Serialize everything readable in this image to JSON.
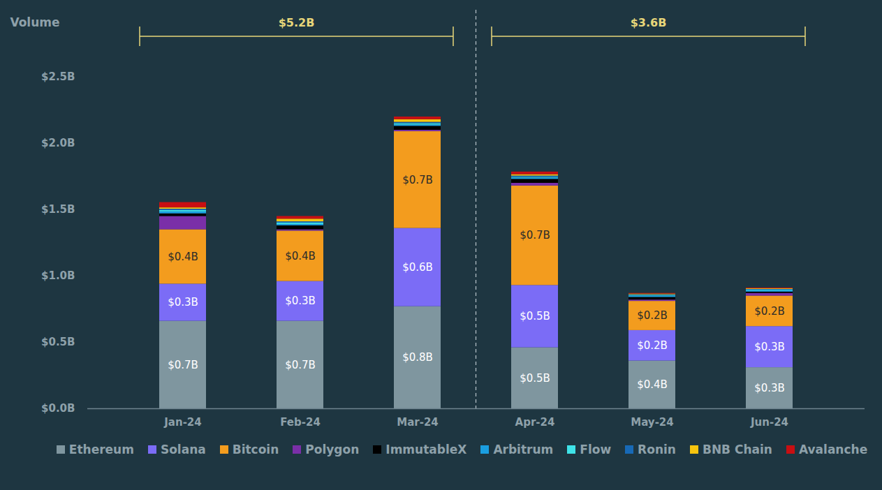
{
  "chart_data": {
    "type": "bar",
    "stacked": true,
    "data_labels": true,
    "grid": false,
    "ylabel": "Volume",
    "categories": [
      "Jan-24",
      "Feb-24",
      "Mar-24",
      "Apr-24",
      "May-24",
      "Jun-24"
    ],
    "ylim": [
      0,
      2.5
    ],
    "yticks": [
      {
        "value": 0,
        "label": "$0.0B"
      },
      {
        "value": 0.5,
        "label": "$0.5B"
      },
      {
        "value": 1.0,
        "label": "$1.0B"
      },
      {
        "value": 1.5,
        "label": "$1.5B"
      },
      {
        "value": 2.0,
        "label": "$2.0B"
      },
      {
        "value": 2.5,
        "label": "$2.5B"
      }
    ],
    "series": [
      {
        "name": "Ethereum",
        "color": "#7f969f",
        "values": [
          0.66,
          0.66,
          0.77,
          0.46,
          0.36,
          0.31
        ],
        "value_labels": [
          "$0.7B",
          "$0.7B",
          "$0.8B",
          "$0.5B",
          "$0.4B",
          "$0.3B"
        ]
      },
      {
        "name": "Solana",
        "color": "#7b6cf6",
        "values": [
          0.28,
          0.3,
          0.59,
          0.47,
          0.23,
          0.31
        ],
        "value_labels": [
          "$0.3B",
          "$0.3B",
          "$0.6B",
          "$0.5B",
          "$0.2B",
          "$0.3B"
        ]
      },
      {
        "name": "Bitcoin",
        "color": "#f39c1e",
        "values": [
          0.41,
          0.38,
          0.73,
          0.75,
          0.22,
          0.23
        ],
        "value_labels": [
          "$0.4B",
          "$0.4B",
          "$0.7B",
          "$0.7B",
          "$0.2B",
          "$0.2B"
        ]
      },
      {
        "name": "Polygon",
        "color": "#7a2fa8",
        "values": [
          0.1,
          0.01,
          0.01,
          0.02,
          0.01,
          0.02
        ]
      },
      {
        "name": "ImmutableX",
        "color": "#000000",
        "values": [
          0.02,
          0.03,
          0.03,
          0.03,
          0.02,
          0.01
        ]
      },
      {
        "name": "Arbitrum",
        "color": "#1a9ee0",
        "values": [
          0.015,
          0.01,
          0.01,
          0.01,
          0.01,
          0.01
        ]
      },
      {
        "name": "Flow",
        "color": "#3fe3e8",
        "values": [
          0.01,
          0.01,
          0.01,
          0.005,
          0.005,
          0.005
        ]
      },
      {
        "name": "Ronin",
        "color": "#1769b6",
        "values": [
          0.01,
          0.01,
          0.01,
          0.01,
          0.005,
          0.005
        ]
      },
      {
        "name": "BNB Chain",
        "color": "#f6c40e",
        "values": [
          0.01,
          0.02,
          0.02,
          0.01,
          0.005,
          0.005
        ]
      },
      {
        "name": "Avalanche",
        "color": "#c80f12",
        "values": [
          0.04,
          0.02,
          0.02,
          0.02,
          0.005,
          0.005
        ]
      }
    ],
    "annotations": [
      {
        "text": "$5.2B",
        "from": "Jan-24",
        "to": "Mar-24"
      },
      {
        "text": "$3.6B",
        "from": "Apr-24",
        "to": "Jun-24"
      }
    ]
  }
}
